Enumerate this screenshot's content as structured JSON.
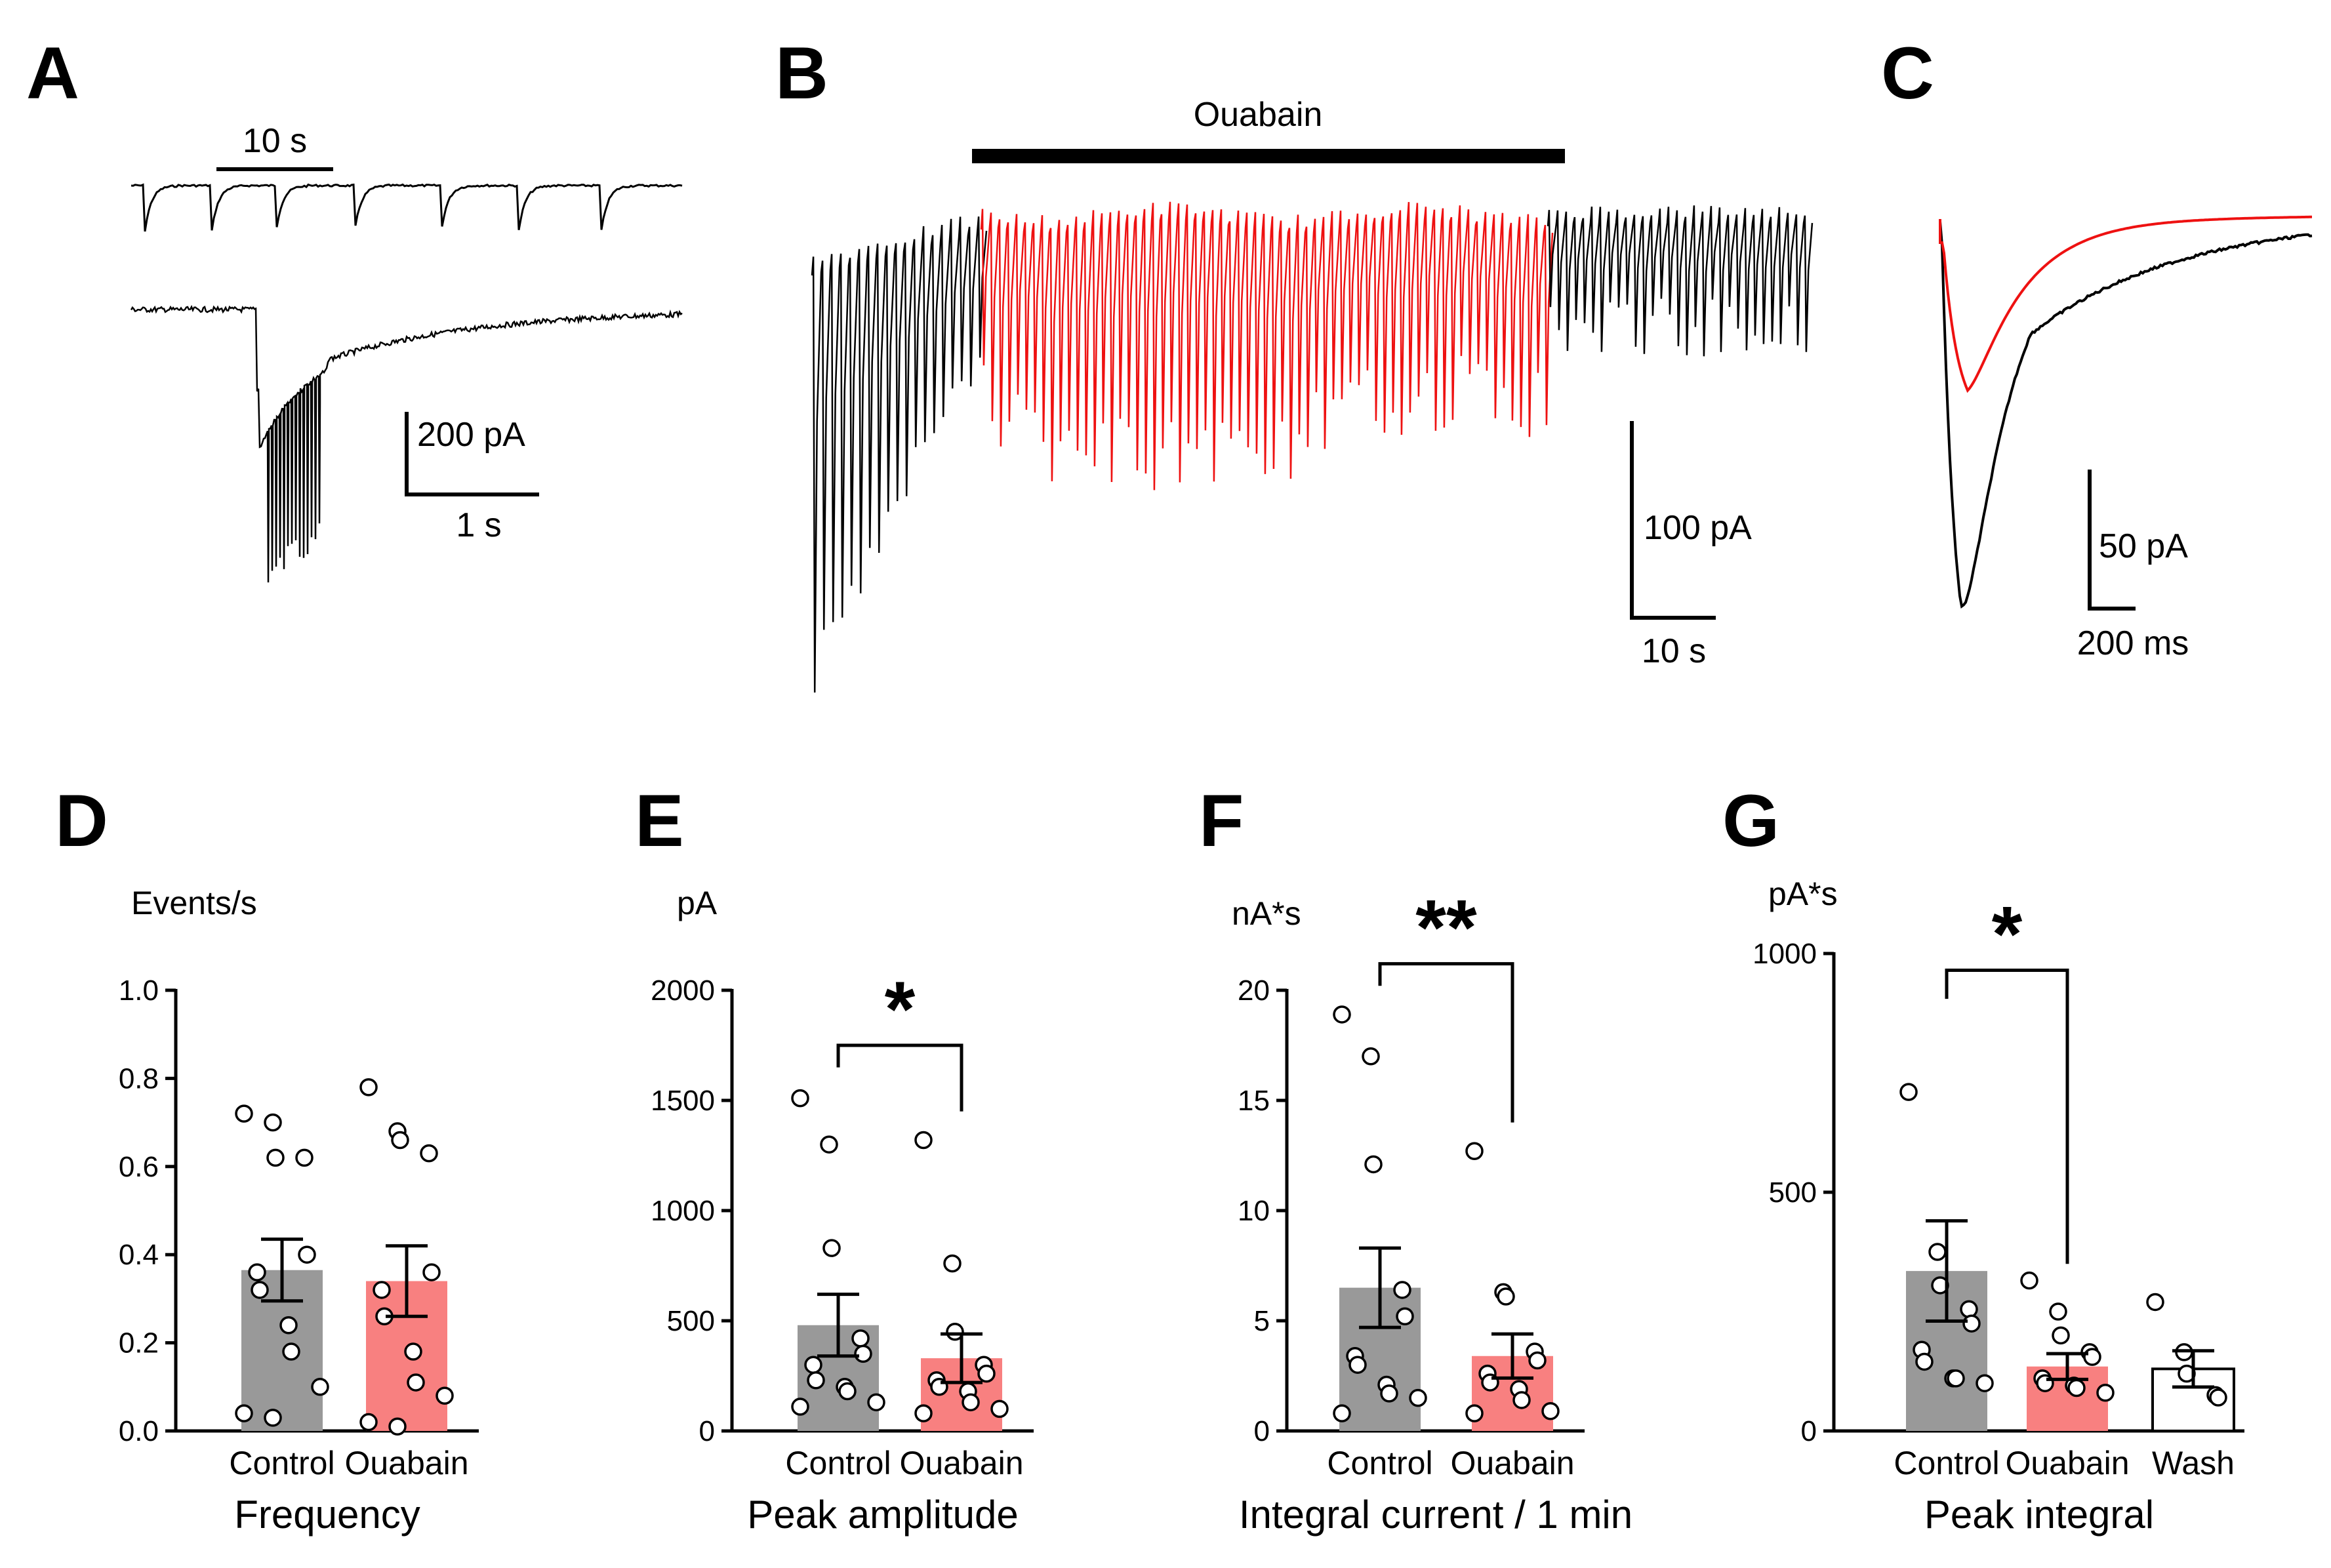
{
  "panel_labels": {
    "a": "A",
    "b": "B",
    "c": "C",
    "d": "D",
    "e": "E",
    "f": "F",
    "g": "G"
  },
  "colors": {
    "control": "#999999",
    "ouabain": "#f88080",
    "ouabain_trace": "#ee1111",
    "wash": "#ffffff",
    "ink": "#000000"
  },
  "trace_a": {
    "time_label": "10 s",
    "amp_label": "200 pA",
    "time_label2": "1 s"
  },
  "trace_b": {
    "drug_label": "Ouabain",
    "amp_label": "100 pA",
    "time_label": "10 s"
  },
  "trace_c": {
    "amp_label": "50 pA",
    "time_label": "200 ms"
  },
  "chart_data": [
    {
      "type": "bar",
      "panel": "D",
      "title": "Frequency",
      "ylabel": "Events/s",
      "ylim": [
        0,
        1.0
      ],
      "yticks": [
        "0.0",
        "0.2",
        "0.4",
        "0.6",
        "0.8",
        "1.0"
      ],
      "ytick_values": [
        0,
        0.2,
        0.4,
        0.6,
        0.8,
        1.0
      ],
      "categories": [
        "Control",
        "Ouabain"
      ],
      "values": [
        0.365,
        0.34
      ],
      "sem": [
        0.07,
        0.08
      ],
      "points": [
        [
          0.72,
          0.7,
          0.62,
          0.62,
          0.4,
          0.36,
          0.32,
          0.24,
          0.18,
          0.1,
          0.04,
          0.03
        ],
        [
          0.78,
          0.68,
          0.66,
          0.63,
          0.36,
          0.32,
          0.26,
          0.18,
          0.11,
          0.08,
          0.02,
          0.01
        ]
      ],
      "significance": ""
    },
    {
      "type": "bar",
      "panel": "E",
      "title": "Peak amplitude",
      "ylabel": "pA",
      "ylim": [
        0,
        2000
      ],
      "yticks": [
        "0",
        "500",
        "1000",
        "1500",
        "2000"
      ],
      "ytick_values": [
        0,
        500,
        1000,
        1500,
        2000
      ],
      "categories": [
        "Control",
        "Ouabain"
      ],
      "values": [
        480,
        330
      ],
      "sem": [
        140,
        110
      ],
      "points": [
        [
          1510,
          1300,
          830,
          420,
          350,
          300,
          230,
          200,
          180,
          130,
          110
        ],
        [
          1320,
          760,
          450,
          300,
          260,
          230,
          200,
          180,
          130,
          100,
          80
        ]
      ],
      "significance": "*"
    },
    {
      "type": "bar",
      "panel": "F",
      "title": "Integral current / 1 min",
      "ylabel": "nA*s",
      "ylim": [
        0,
        20
      ],
      "yticks": [
        "0",
        "5",
        "10",
        "15",
        "20"
      ],
      "ytick_values": [
        0,
        5,
        10,
        15,
        20
      ],
      "categories": [
        "Control",
        "Ouabain"
      ],
      "values": [
        6.5,
        3.4
      ],
      "sem": [
        1.8,
        1.0
      ],
      "points": [
        [
          18.9,
          17.0,
          12.1,
          6.4,
          5.2,
          3.4,
          3.0,
          2.1,
          1.7,
          1.5,
          0.8
        ],
        [
          12.7,
          6.3,
          6.1,
          3.6,
          3.2,
          2.6,
          2.2,
          1.9,
          1.4,
          0.9,
          0.8
        ]
      ],
      "significance": "**"
    },
    {
      "type": "bar",
      "panel": "G",
      "title": "Peak integral",
      "ylabel": "pA*s",
      "ylim": [
        0,
        1000
      ],
      "yticks": [
        "0",
        "500",
        "1000"
      ],
      "ytick_values": [
        0,
        500,
        1000
      ],
      "categories": [
        "Control",
        "Ouabain",
        "Wash"
      ],
      "values": [
        335,
        135,
        130
      ],
      "sem": [
        105,
        27,
        38
      ],
      "points": [
        [
          710,
          375,
          305,
          255,
          225,
          170,
          145,
          110,
          110,
          100
        ],
        [
          315,
          250,
          200,
          165,
          155,
          110,
          100,
          95,
          90,
          80
        ],
        [
          270,
          165,
          120,
          75,
          70
        ]
      ],
      "significance": "*"
    }
  ]
}
